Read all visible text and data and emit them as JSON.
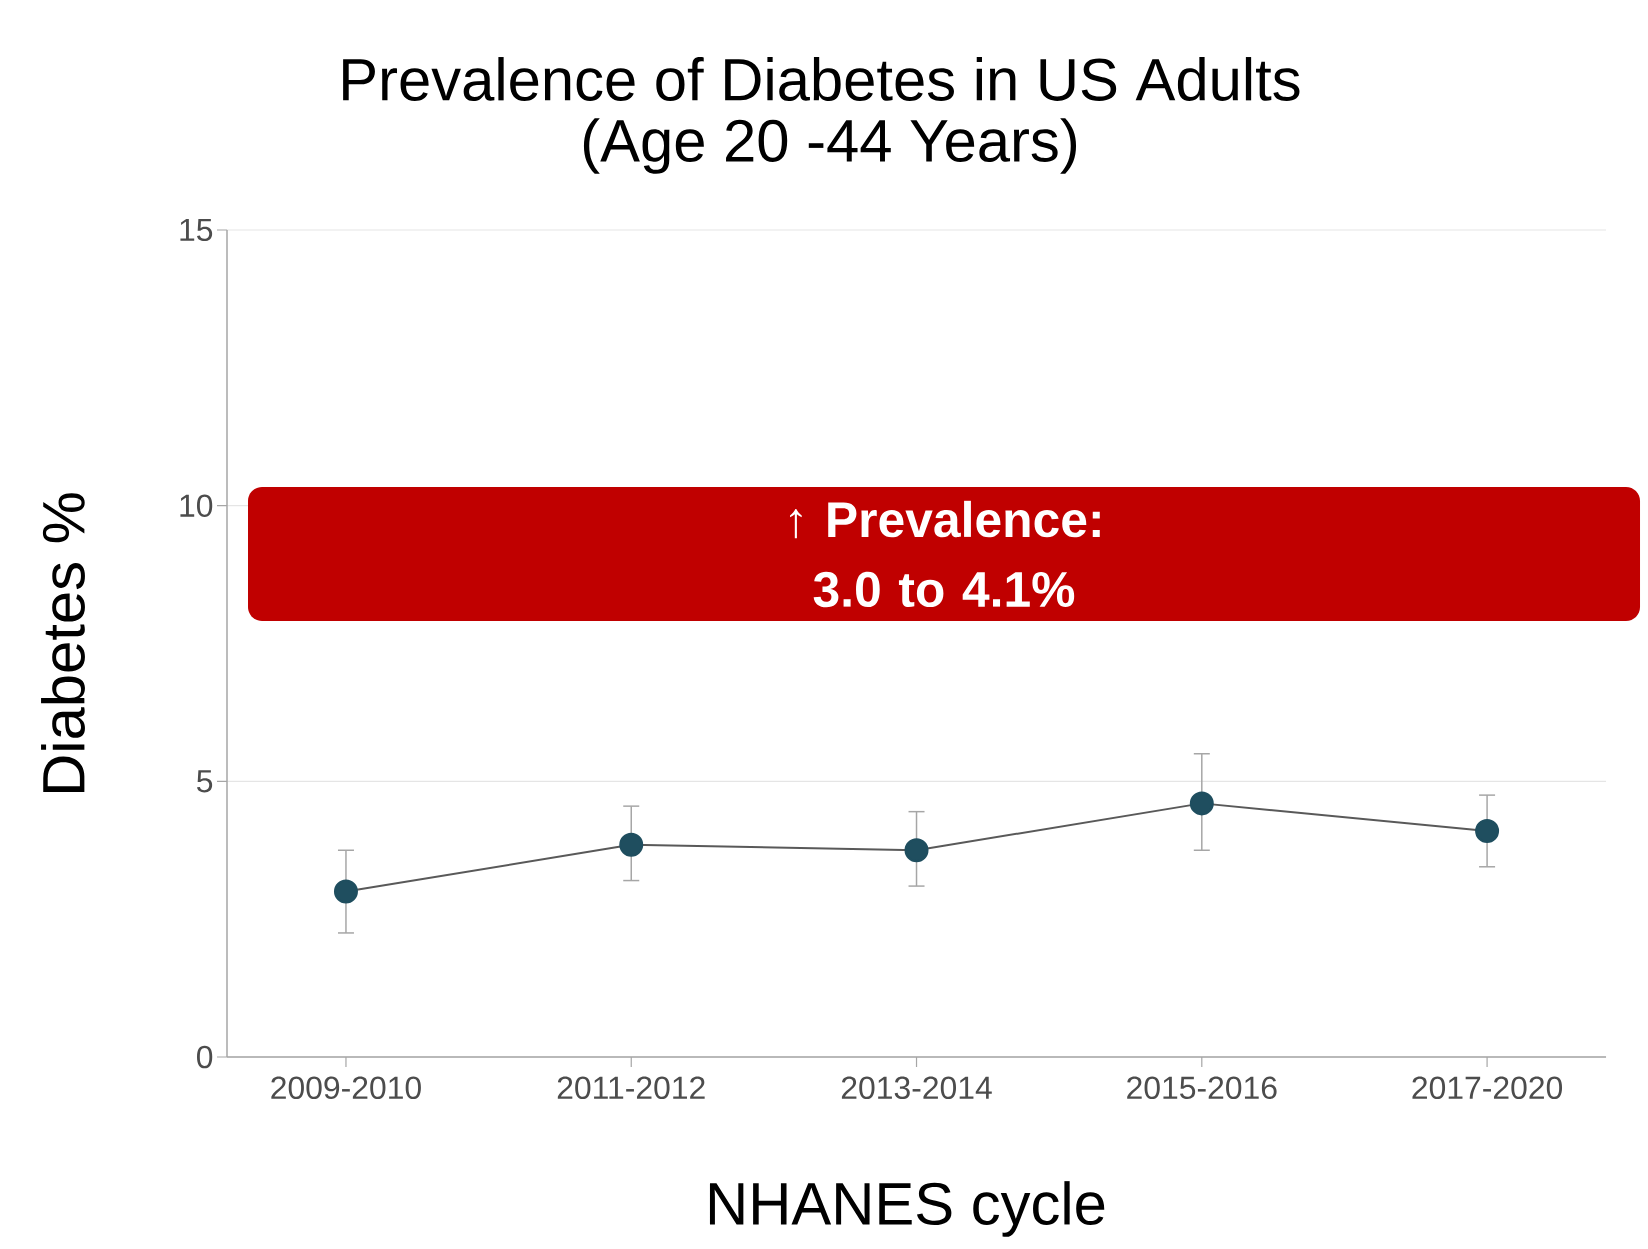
{
  "chart_data": {
    "type": "line",
    "title": "Prevalence of Diabetes in US Adults",
    "subtitle": "(Age 20 -44 Years)",
    "xlabel": "NHANES cycle",
    "ylabel": "Diabetes %",
    "categories": [
      "2009-2010",
      "2011-2012",
      "2013-2014",
      "2015-2016",
      "2017-2020"
    ],
    "series": [
      {
        "color": "#1f4e5f",
        "values": [
          3.0,
          3.85,
          3.75,
          4.6,
          4.1
        ],
        "errors": [
          [
            2.25,
            3.75
          ],
          [
            3.2,
            4.55
          ],
          [
            3.1,
            4.45
          ],
          [
            3.75,
            5.5
          ],
          [
            3.45,
            4.75
          ]
        ]
      }
    ],
    "ylim": [
      0,
      15
    ],
    "yticks": [
      0,
      5,
      10,
      15
    ],
    "grid": "y",
    "marker": "circle",
    "line_style": "solid",
    "annotations": [
      "↑ Prevalence: 3.0 to 4.1%"
    ]
  }
}
